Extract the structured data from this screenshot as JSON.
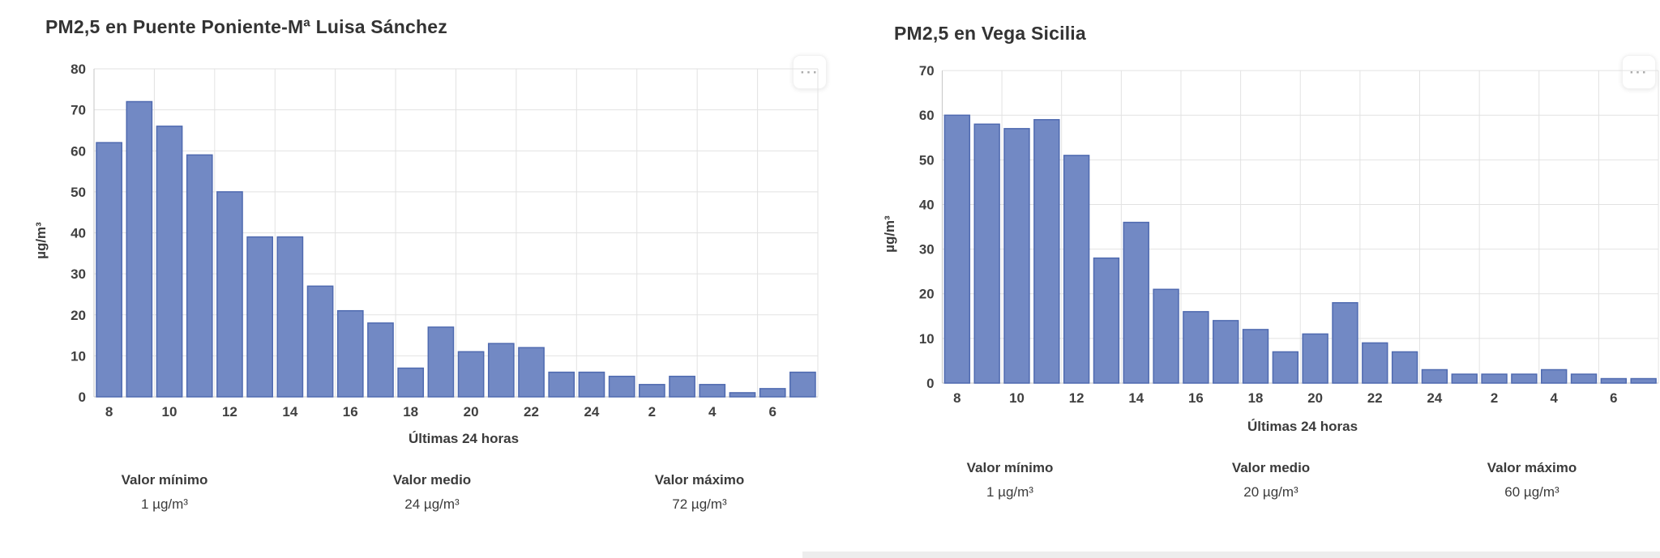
{
  "chart_data": [
    {
      "type": "bar",
      "title": "PM2,5 en Puente Poniente-Mª Luisa Sánchez",
      "xlabel": "Últimas 24 horas",
      "ylabel": "µg/m³",
      "ylim": [
        0,
        80
      ],
      "ytick_step": 10,
      "grid": "on",
      "legend": "none",
      "x": [
        "8",
        "9",
        "10",
        "11",
        "12",
        "13",
        "14",
        "15",
        "16",
        "17",
        "18",
        "19",
        "20",
        "21",
        "22",
        "23",
        "24",
        "1",
        "2",
        "3",
        "4",
        "5",
        "6",
        "7"
      ],
      "x_ticks_shown": [
        "8",
        "10",
        "12",
        "14",
        "16",
        "18",
        "20",
        "22",
        "24",
        "2",
        "4",
        "6"
      ],
      "values": [
        62,
        72,
        66,
        59,
        50,
        39,
        39,
        27,
        21,
        18,
        7,
        17,
        11,
        13,
        12,
        6,
        6,
        5,
        3,
        5,
        3,
        1,
        2,
        6
      ],
      "bar_color": "#7289c4",
      "bar_border_color": "#4f6ab0",
      "gridline_color": "#e2e2e2",
      "axis_line_color": "#c6c6c6",
      "menu_icon": "ellipsis-icon",
      "menu_icon_glyph": "···",
      "stats": [
        {
          "label": "Valor mínimo",
          "value": "1 µg/m³"
        },
        {
          "label": "Valor medio",
          "value": "24 µg/m³"
        },
        {
          "label": "Valor máximo",
          "value": "72 µg/m³"
        }
      ]
    },
    {
      "type": "bar",
      "title": "PM2,5 en Vega Sicilia",
      "xlabel": "Últimas 24 horas",
      "ylabel": "µg/m³",
      "ylim": [
        0,
        70
      ],
      "ytick_step": 10,
      "grid": "on",
      "legend": "none",
      "x": [
        "8",
        "9",
        "10",
        "11",
        "12",
        "13",
        "14",
        "15",
        "16",
        "17",
        "18",
        "19",
        "20",
        "21",
        "22",
        "23",
        "24",
        "1",
        "2",
        "3",
        "4",
        "5",
        "6",
        "7"
      ],
      "x_ticks_shown": [
        "8",
        "10",
        "12",
        "14",
        "16",
        "18",
        "20",
        "22",
        "24",
        "2",
        "4",
        "6"
      ],
      "values": [
        60,
        58,
        57,
        59,
        51,
        28,
        36,
        21,
        16,
        14,
        12,
        7,
        11,
        18,
        9,
        7,
        3,
        2,
        2,
        2,
        3,
        2,
        1,
        1
      ],
      "bar_color": "#7289c4",
      "bar_border_color": "#4f6ab0",
      "gridline_color": "#e2e2e2",
      "axis_line_color": "#c6c6c6",
      "menu_icon": "ellipsis-icon",
      "menu_icon_glyph": "···",
      "stats": [
        {
          "label": "Valor mínimo",
          "value": "1 µg/m³"
        },
        {
          "label": "Valor medio",
          "value": "20 µg/m³"
        },
        {
          "label": "Valor máximo",
          "value": "60 µg/m³"
        }
      ]
    }
  ]
}
